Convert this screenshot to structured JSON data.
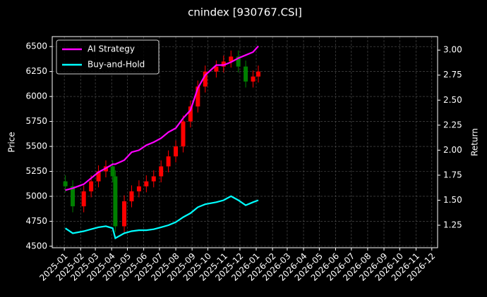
{
  "chart_data": {
    "type": "candlestick",
    "title": "cnindex [930767.CSI]",
    "ylabel": "Price",
    "y2label": "Return",
    "x": [
      "2025-01-03",
      "2025-01-17",
      "2025-02-07",
      "2025-02-21",
      "2025-03-07",
      "2025-03-21",
      "2025-04-03",
      "2025-04-08",
      "2025-04-25",
      "2025-05-09",
      "2025-05-23",
      "2025-06-06",
      "2025-06-20",
      "2025-07-04",
      "2025-07-18",
      "2025-08-01",
      "2025-08-15",
      "2025-08-29",
      "2025-09-12",
      "2025-09-26",
      "2025-10-17",
      "2025-10-31",
      "2025-11-14",
      "2025-11-28",
      "2025-12-12",
      "2025-12-26",
      "2026-01-05"
    ],
    "open": [
      5150,
      5100,
      4900,
      5050,
      5150,
      5250,
      5300,
      5200,
      4700,
      4950,
      5050,
      5100,
      5150,
      5200,
      5300,
      5400,
      5500,
      5750,
      5900,
      6100,
      6250,
      6300,
      6350,
      6400,
      6300,
      6150,
      6200
    ],
    "high": [
      5210,
      5160,
      5110,
      5210,
      5310,
      5360,
      5360,
      5260,
      5010,
      5110,
      5160,
      5210,
      5260,
      5360,
      5460,
      5560,
      5810,
      5960,
      6160,
      6310,
      6360,
      6410,
      6460,
      6460,
      6360,
      6260,
      6310
    ],
    "low": [
      5040,
      4840,
      4840,
      4990,
      5090,
      5190,
      5140,
      4640,
      4640,
      4890,
      4990,
      5040,
      5090,
      5140,
      5240,
      5340,
      5440,
      5690,
      5840,
      6040,
      6190,
      6240,
      6290,
      6240,
      6090,
      6090,
      6140
    ],
    "close": [
      5100,
      4900,
      5050,
      5150,
      5250,
      5300,
      5200,
      4700,
      4950,
      5050,
      5100,
      5150,
      5200,
      5300,
      5400,
      5500,
      5750,
      5900,
      6100,
      6250,
      6300,
      6350,
      6400,
      6300,
      6150,
      6200,
      6250
    ],
    "up_color": "#ff0000",
    "down_color": "#008000",
    "series": [
      {
        "name": "AI Strategy",
        "color": "#ff00ff",
        "axis": "y2",
        "values": [
          1.6,
          1.62,
          1.66,
          1.72,
          1.78,
          1.82,
          1.86,
          1.86,
          1.9,
          1.98,
          2.0,
          2.05,
          2.08,
          2.12,
          2.18,
          2.22,
          2.32,
          2.4,
          2.62,
          2.75,
          2.85,
          2.85,
          2.88,
          2.92,
          2.95,
          2.98,
          3.04
        ]
      },
      {
        "name": "Buy-and-Hold",
        "color": "#00ffff",
        "axis": "y2",
        "values": [
          1.22,
          1.17,
          1.19,
          1.21,
          1.23,
          1.24,
          1.22,
          1.12,
          1.17,
          1.19,
          1.2,
          1.2,
          1.21,
          1.23,
          1.25,
          1.28,
          1.33,
          1.37,
          1.43,
          1.46,
          1.48,
          1.5,
          1.54,
          1.5,
          1.45,
          1.48,
          1.5
        ]
      }
    ],
    "xlim": [
      "2024-12-09",
      "2026-12-12"
    ],
    "xticks": [
      "2025-01",
      "2025-02",
      "2025-03",
      "2025-04",
      "2025-05",
      "2025-06",
      "2025-07",
      "2025-08",
      "2025-09",
      "2025-10",
      "2025-11",
      "2025-12",
      "2026-01",
      "2026-02",
      "2026-03",
      "2026-04",
      "2026-05",
      "2026-06",
      "2026-07",
      "2026-08",
      "2026-09",
      "2026-10",
      "2026-11",
      "2026-12"
    ],
    "ylim": [
      4485,
      6600
    ],
    "yticks": [
      4500,
      4750,
      5000,
      5250,
      5500,
      5750,
      6000,
      6250,
      6500
    ],
    "y2lim": [
      1.025,
      3.135
    ],
    "y2ticks": [
      {
        "value": 1.25,
        "label": "1.25"
      },
      {
        "value": 1.5,
        "label": "1.50"
      },
      {
        "value": 1.75,
        "label": "1.75"
      },
      {
        "value": 2.0,
        "label": "2.00"
      },
      {
        "value": 2.25,
        "label": "2.25"
      },
      {
        "value": 2.5,
        "label": "2.50"
      },
      {
        "value": 2.75,
        "label": "2.75"
      },
      {
        "value": 3.0,
        "label": "3.00"
      }
    ],
    "grid": true,
    "legend": "upper left"
  }
}
